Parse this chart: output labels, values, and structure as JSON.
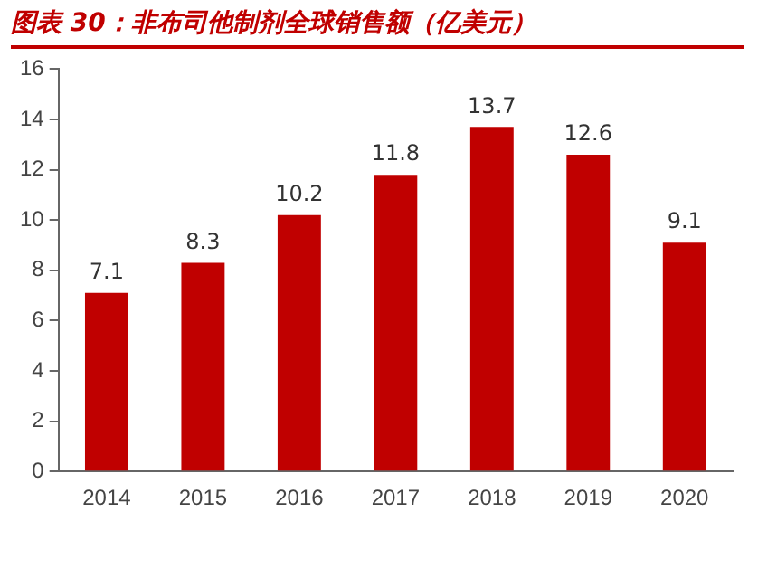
{
  "chart_data": {
    "type": "bar",
    "title": "图表 30：非布司他制剂全球销售额（亿美元）",
    "categories": [
      "2014",
      "2015",
      "2016",
      "2017",
      "2018",
      "2019",
      "2020"
    ],
    "values": [
      7.1,
      8.3,
      10.2,
      11.8,
      13.7,
      12.6,
      9.1
    ],
    "color": "#c00000",
    "ylim": [
      0,
      16
    ],
    "yticks": [
      0,
      2,
      4,
      6,
      8,
      10,
      12,
      14,
      16
    ],
    "grid": false,
    "legend": false,
    "data_labels": true
  }
}
